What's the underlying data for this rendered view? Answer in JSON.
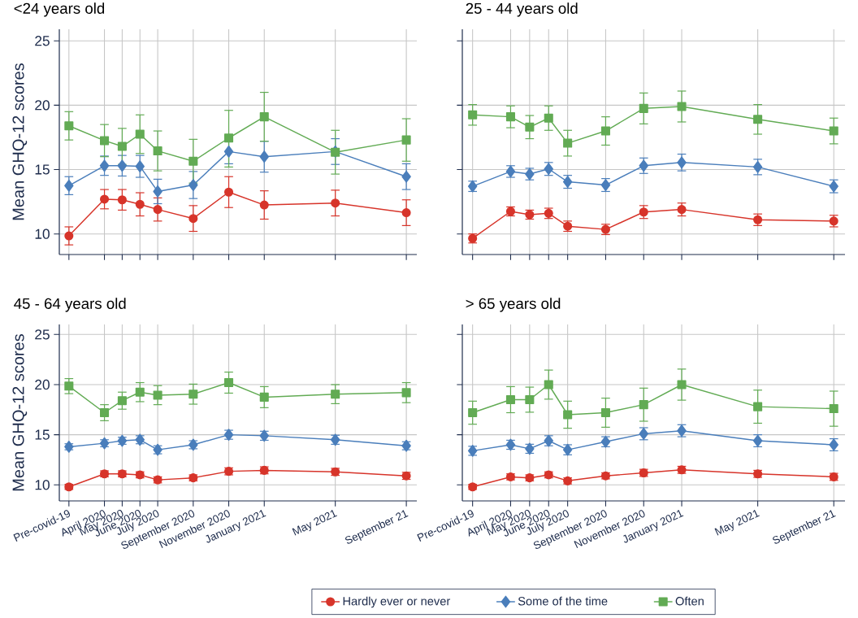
{
  "chart_data": [
    {
      "type": "line",
      "title": "<24 years old",
      "ylabel": "Mean GHQ-12 scores",
      "tick_labels": "y",
      "grid": true,
      "x": [
        "2020-02",
        "2020-04",
        "2020-05",
        "2020-06",
        "2020-07",
        "2020-09",
        "2020-11",
        "2021-01",
        "2021-05",
        "2021-09"
      ],
      "xlim": [
        "2020-01-15",
        "2021-09-19"
      ],
      "ylim": [
        8.4,
        25.9
      ],
      "yticks": [
        10,
        15,
        20,
        25
      ],
      "xticks": [
        {
          "value": "2020-02",
          "label": null
        },
        {
          "value": "2020-04",
          "label": null
        },
        {
          "value": "2020-05",
          "label": null
        },
        {
          "value": "2020-06",
          "label": null
        },
        {
          "value": "2020-07",
          "label": null
        },
        {
          "value": "2020-09",
          "label": null
        },
        {
          "value": "2020-11",
          "label": null
        },
        {
          "value": "2021-01",
          "label": null
        },
        {
          "value": "2021-05",
          "label": null
        },
        {
          "value": "2021-09",
          "label": null
        }
      ],
      "series": [
        {
          "color": "#d7342a",
          "marker": "circle",
          "values": [
            9.85,
            12.7,
            12.65,
            12.3,
            11.9,
            11.2,
            13.25,
            12.25,
            12.4,
            11.65
          ],
          "errors": [
            0.7,
            0.75,
            0.8,
            0.9,
            0.9,
            1.0,
            1.2,
            1.1,
            1.0,
            1.0
          ]
        },
        {
          "color": "#4a7ebb",
          "marker": "diamond",
          "values": [
            13.75,
            15.3,
            15.3,
            15.25,
            13.3,
            13.8,
            16.4,
            16.0,
            16.4,
            14.45
          ],
          "errors": [
            0.7,
            0.75,
            0.8,
            0.85,
            0.95,
            1.05,
            0.95,
            1.2,
            1.0,
            1.0
          ]
        },
        {
          "color": "#62ab54",
          "marker": "square",
          "values": [
            18.4,
            17.25,
            16.8,
            17.75,
            16.45,
            15.65,
            17.45,
            19.1,
            16.35,
            17.3
          ],
          "errors": [
            1.1,
            1.25,
            1.4,
            1.5,
            1.55,
            1.7,
            [
              15.2,
              19.6
            ],
            1.9,
            1.7,
            1.65
          ]
        }
      ]
    },
    {
      "type": "line",
      "title": "25 - 44 years old",
      "tick_labels": false,
      "grid": true,
      "x": [
        "2020-02",
        "2020-04",
        "2020-05",
        "2020-06",
        "2020-07",
        "2020-09",
        "2020-11",
        "2021-01",
        "2021-05",
        "2021-09"
      ],
      "xlim": [
        "2020-01-15",
        "2021-09-19"
      ],
      "ylim": [
        8.4,
        25.9
      ],
      "yticks": [
        10,
        15,
        20,
        25
      ],
      "xticks": [
        {
          "value": "2020-02",
          "label": null
        },
        {
          "value": "2020-04",
          "label": null
        },
        {
          "value": "2020-05",
          "label": null
        },
        {
          "value": "2020-06",
          "label": null
        },
        {
          "value": "2020-07",
          "label": null
        },
        {
          "value": "2020-09",
          "label": null
        },
        {
          "value": "2020-11",
          "label": null
        },
        {
          "value": "2021-01",
          "label": null
        },
        {
          "value": "2021-05",
          "label": null
        },
        {
          "value": "2021-09",
          "label": null
        }
      ],
      "series": [
        {
          "color": "#d7342a",
          "marker": "circle",
          "values": [
            9.65,
            11.75,
            11.5,
            11.6,
            10.6,
            10.35,
            11.7,
            11.9,
            11.1,
            11.0
          ],
          "errors": [
            0.35,
            0.35,
            0.35,
            0.4,
            0.4,
            0.4,
            0.5,
            0.5,
            0.45,
            0.45
          ]
        },
        {
          "color": "#4a7ebb",
          "marker": "diamond",
          "values": [
            13.7,
            14.85,
            14.65,
            15.05,
            14.05,
            13.8,
            15.3,
            15.55,
            15.2,
            13.7
          ],
          "errors": [
            0.4,
            0.45,
            0.45,
            0.5,
            0.5,
            0.5,
            0.6,
            0.65,
            0.6,
            0.5
          ]
        },
        {
          "color": "#62ab54",
          "marker": "square",
          "values": [
            19.25,
            19.1,
            18.3,
            19.0,
            17.05,
            18.0,
            19.75,
            19.9,
            18.9,
            18.0
          ],
          "errors": [
            0.8,
            0.85,
            0.9,
            0.95,
            1.0,
            1.1,
            1.2,
            1.2,
            1.15,
            1.0
          ]
        }
      ]
    },
    {
      "type": "line",
      "title": "45 - 64 years old",
      "ylabel": "Mean GHQ-12 scores",
      "grid": true,
      "x": [
        "2020-02",
        "2020-04",
        "2020-05",
        "2020-06",
        "2020-07",
        "2020-09",
        "2020-11",
        "2021-01",
        "2021-05",
        "2021-09"
      ],
      "xlim": [
        "2020-01-15",
        "2021-09-19"
      ],
      "ylim": [
        8.4,
        26.0
      ],
      "yticks": [
        10,
        15,
        20,
        25
      ],
      "xticks": [
        {
          "value": "2020-02",
          "label": "Pre-covid-19"
        },
        {
          "value": "2020-04",
          "label": "April 2020"
        },
        {
          "value": "2020-05",
          "label": "May 2020"
        },
        {
          "value": "2020-06",
          "label": "June 2020"
        },
        {
          "value": "2020-07",
          "label": "July 2020"
        },
        {
          "value": "2020-09",
          "label": "September 2020"
        },
        {
          "value": "2020-11",
          "label": "November 2020"
        },
        {
          "value": "2021-01",
          "label": "January 2021"
        },
        {
          "value": "2021-05",
          "label": "May 2021"
        },
        {
          "value": "2021-09",
          "label": "September 21"
        }
      ],
      "series": [
        {
          "color": "#d7342a",
          "marker": "circle",
          "values": [
            9.8,
            11.1,
            11.1,
            11.0,
            10.5,
            10.7,
            11.35,
            11.45,
            11.3,
            10.9
          ],
          "errors": [
            0.25,
            0.3,
            0.3,
            0.3,
            0.3,
            0.3,
            0.35,
            0.35,
            0.35,
            0.35
          ]
        },
        {
          "color": "#4a7ebb",
          "marker": "diamond",
          "values": [
            13.8,
            14.15,
            14.4,
            14.5,
            13.5,
            14.0,
            15.0,
            14.9,
            14.5,
            13.9
          ],
          "errors": [
            0.3,
            0.35,
            0.35,
            0.4,
            0.4,
            0.4,
            0.45,
            0.45,
            0.45,
            0.4
          ]
        },
        {
          "color": "#62ab54",
          "marker": "square",
          "values": [
            19.85,
            17.2,
            18.4,
            19.25,
            18.95,
            19.05,
            20.2,
            18.75,
            19.05,
            19.2
          ],
          "errors": [
            0.75,
            0.8,
            0.85,
            0.95,
            0.95,
            1.0,
            1.05,
            1.05,
            0.95,
            1.0
          ]
        }
      ]
    },
    {
      "type": "line",
      "title": "> 65 years old",
      "tick_labels": "x",
      "grid": true,
      "legend": "bottom",
      "x": [
        "2020-02",
        "2020-04",
        "2020-05",
        "2020-06",
        "2020-07",
        "2020-09",
        "2020-11",
        "2021-01",
        "2021-05",
        "2021-09"
      ],
      "xlim": [
        "2020-01-15",
        "2021-09-19"
      ],
      "ylim": [
        8.4,
        26.0
      ],
      "yticks": [
        10,
        15,
        20,
        25
      ],
      "xticks": [
        {
          "value": "2020-02",
          "label": "Pre-covid-19"
        },
        {
          "value": "2020-04",
          "label": "April 2020"
        },
        {
          "value": "2020-05",
          "label": "May 2020"
        },
        {
          "value": "2020-06",
          "label": "June 2020"
        },
        {
          "value": "2020-07",
          "label": "July 2020"
        },
        {
          "value": "2020-09",
          "label": "September 2020"
        },
        {
          "value": "2020-11",
          "label": "November 2020"
        },
        {
          "value": "2021-01",
          "label": "January 2021"
        },
        {
          "value": "2021-05",
          "label": "May 2021"
        },
        {
          "value": "2021-09",
          "label": "September 21"
        }
      ],
      "series": [
        {
          "name": "Hardly ever or never",
          "color": "#d7342a",
          "marker": "circle",
          "values": [
            9.8,
            10.8,
            10.7,
            11.0,
            10.4,
            10.9,
            11.2,
            11.5,
            11.1,
            10.8
          ],
          "errors": [
            0.25,
            0.3,
            0.3,
            0.3,
            0.3,
            0.3,
            0.35,
            0.35,
            0.35,
            0.35
          ]
        },
        {
          "name": "Some of the time",
          "color": "#4a7ebb",
          "marker": "diamond",
          "values": [
            13.4,
            14.0,
            13.6,
            14.4,
            13.5,
            14.3,
            15.1,
            15.4,
            14.4,
            14.0
          ],
          "errors": [
            0.45,
            0.45,
            0.45,
            0.5,
            0.5,
            0.5,
            0.6,
            0.6,
            0.6,
            0.6
          ]
        },
        {
          "name": "Often",
          "color": "#62ab54",
          "marker": "square",
          "values": [
            17.2,
            18.5,
            18.5,
            20.0,
            17.0,
            17.2,
            18.0,
            20.0,
            17.8,
            17.6
          ],
          "errors": [
            1.15,
            1.3,
            1.25,
            1.45,
            1.35,
            1.45,
            1.65,
            1.55,
            1.65,
            1.75
          ]
        }
      ]
    }
  ]
}
